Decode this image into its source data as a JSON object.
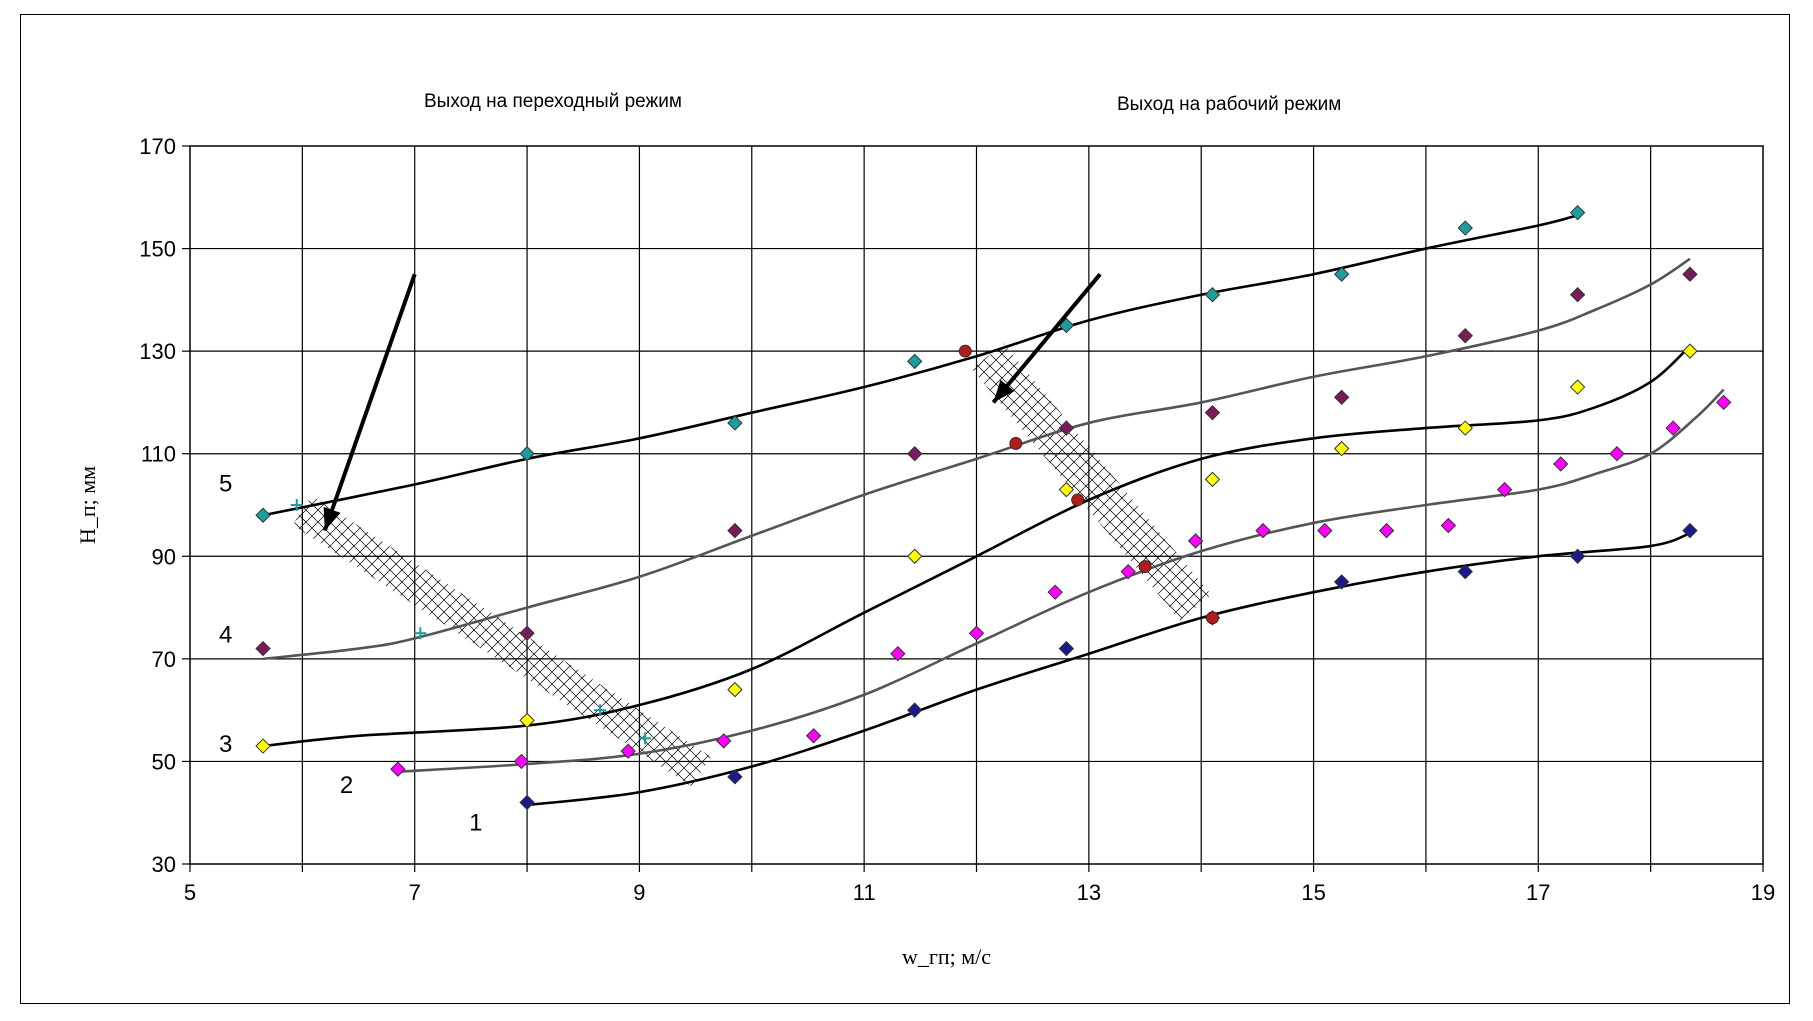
{
  "chart_data": {
    "type": "scatter",
    "xlabel": "w_гп; м/с",
    "ylabel": "H_п; мм",
    "xlim": [
      5,
      19
    ],
    "ylim": [
      30,
      170
    ],
    "x_ticks": [
      5,
      7,
      9,
      11,
      13,
      15,
      17,
      19
    ],
    "y_ticks": [
      30,
      50,
      70,
      90,
      110,
      130,
      150,
      170
    ],
    "grid": true,
    "annotations": [
      {
        "text": "Выход на переходный режим",
        "tail": [
          7.0,
          145
        ],
        "head": [
          6.2,
          95
        ]
      },
      {
        "text": "Выход на рабочий режим",
        "tail": [
          13.1,
          145
        ],
        "head": [
          12.15,
          120
        ]
      }
    ],
    "series": [
      {
        "name": "1",
        "color": "#1a1a8c",
        "points": [
          [
            8.0,
            42
          ],
          [
            9.85,
            47
          ],
          [
            11.45,
            60
          ],
          [
            12.8,
            72
          ],
          [
            14.1,
            78
          ],
          [
            15.25,
            85
          ],
          [
            16.35,
            87
          ],
          [
            17.35,
            90
          ],
          [
            18.35,
            95
          ]
        ],
        "fit": [
          [
            8.0,
            41.5
          ],
          [
            9.0,
            44
          ],
          [
            10.0,
            49
          ],
          [
            11.0,
            56
          ],
          [
            12.0,
            64
          ],
          [
            13.0,
            71
          ],
          [
            14.0,
            78
          ],
          [
            15.0,
            83
          ],
          [
            16.0,
            87
          ],
          [
            17.0,
            90
          ],
          [
            18.0,
            92
          ],
          [
            18.35,
            94.5
          ]
        ]
      },
      {
        "name": "2",
        "color": "#ff00ff",
        "points": [
          [
            6.85,
            48.5
          ],
          [
            7.95,
            50
          ],
          [
            8.9,
            52
          ],
          [
            9.75,
            54
          ],
          [
            10.55,
            55
          ],
          [
            11.3,
            71
          ],
          [
            12.0,
            75
          ],
          [
            12.7,
            83
          ],
          [
            13.35,
            87
          ],
          [
            13.95,
            93
          ],
          [
            14.55,
            95
          ],
          [
            15.1,
            95
          ],
          [
            15.65,
            95
          ],
          [
            16.2,
            96
          ],
          [
            16.7,
            103
          ],
          [
            17.2,
            108
          ],
          [
            17.7,
            110
          ],
          [
            18.2,
            115
          ],
          [
            18.65,
            120
          ]
        ],
        "fit": [
          [
            6.85,
            48
          ],
          [
            8.0,
            49.5
          ],
          [
            9.0,
            51.5
          ],
          [
            10.0,
            56
          ],
          [
            11.0,
            63
          ],
          [
            12.0,
            73
          ],
          [
            13.0,
            83
          ],
          [
            14.0,
            91
          ],
          [
            15.0,
            96.5
          ],
          [
            16.0,
            100
          ],
          [
            17.0,
            103
          ],
          [
            17.5,
            106
          ],
          [
            18.0,
            110
          ],
          [
            18.4,
            117
          ],
          [
            18.65,
            122.5
          ]
        ]
      },
      {
        "name": "3",
        "color": "#ffff00",
        "points": [
          [
            5.65,
            53
          ],
          [
            8.0,
            58
          ],
          [
            9.85,
            64
          ],
          [
            11.45,
            90
          ],
          [
            12.8,
            103
          ],
          [
            14.1,
            105
          ],
          [
            15.25,
            111
          ],
          [
            16.35,
            115
          ],
          [
            17.35,
            123
          ],
          [
            18.35,
            130
          ]
        ],
        "fit": [
          [
            5.65,
            53
          ],
          [
            6.5,
            55
          ],
          [
            8.0,
            57
          ],
          [
            9.0,
            61
          ],
          [
            10.0,
            68
          ],
          [
            11.0,
            79
          ],
          [
            12.0,
            90
          ],
          [
            13.0,
            101
          ],
          [
            14.0,
            109
          ],
          [
            15.0,
            113
          ],
          [
            16.0,
            115
          ],
          [
            17.0,
            116.5
          ],
          [
            17.5,
            119
          ],
          [
            18.0,
            124
          ],
          [
            18.35,
            131
          ]
        ]
      },
      {
        "name": "4",
        "color": "#7b1a5a",
        "points": [
          [
            5.65,
            72
          ],
          [
            8.0,
            75
          ],
          [
            9.85,
            95
          ],
          [
            11.45,
            110
          ],
          [
            12.8,
            115
          ],
          [
            14.1,
            118
          ],
          [
            15.25,
            121
          ],
          [
            16.35,
            133
          ],
          [
            17.35,
            141
          ],
          [
            18.35,
            145
          ]
        ],
        "fit": [
          [
            5.65,
            70
          ],
          [
            6.5,
            72
          ],
          [
            7.0,
            74
          ],
          [
            8.0,
            80
          ],
          [
            9.0,
            86
          ],
          [
            10.0,
            94
          ],
          [
            11.0,
            102
          ],
          [
            12.0,
            109
          ],
          [
            13.0,
            116
          ],
          [
            14.0,
            120
          ],
          [
            15.0,
            125
          ],
          [
            16.0,
            129
          ],
          [
            17.0,
            134
          ],
          [
            17.5,
            138
          ],
          [
            18.0,
            143
          ],
          [
            18.35,
            148
          ]
        ]
      },
      {
        "name": "5",
        "color": "#1a9e9e",
        "points": [
          [
            5.65,
            98
          ],
          [
            8.0,
            110
          ],
          [
            9.85,
            116
          ],
          [
            11.45,
            128
          ],
          [
            12.8,
            135
          ],
          [
            14.1,
            141
          ],
          [
            15.25,
            145
          ],
          [
            16.35,
            154
          ],
          [
            17.35,
            157
          ]
        ],
        "fit": [
          [
            5.65,
            98
          ],
          [
            7.0,
            104
          ],
          [
            8.0,
            109
          ],
          [
            9.0,
            113
          ],
          [
            10.0,
            118
          ],
          [
            11.0,
            123
          ],
          [
            12.0,
            129
          ],
          [
            13.0,
            136
          ],
          [
            14.0,
            141
          ],
          [
            15.0,
            145
          ],
          [
            16.0,
            150
          ],
          [
            17.0,
            154.5
          ],
          [
            17.35,
            156.5
          ]
        ]
      }
    ],
    "transition_points": {
      "marker": "plus",
      "color": "#1a9e9e",
      "points": [
        [
          5.95,
          100
        ],
        [
          7.05,
          75
        ],
        [
          8.65,
          60
        ],
        [
          9.05,
          54.5
        ]
      ]
    },
    "working_points": {
      "marker": "circle",
      "color": "#b01c1c",
      "points": [
        [
          11.9,
          130
        ],
        [
          12.35,
          112
        ],
        [
          12.9,
          101
        ],
        [
          13.5,
          88
        ],
        [
          14.1,
          78
        ]
      ]
    },
    "hatched_bands": [
      {
        "name": "transition-band",
        "start": [
          6.0,
          99
        ],
        "end": [
          9.55,
          48
        ],
        "half_width": 0.35
      },
      {
        "name": "working-band",
        "start": [
          12.1,
          129
        ],
        "end": [
          13.95,
          80
        ],
        "half_width": 0.4
      }
    ]
  }
}
